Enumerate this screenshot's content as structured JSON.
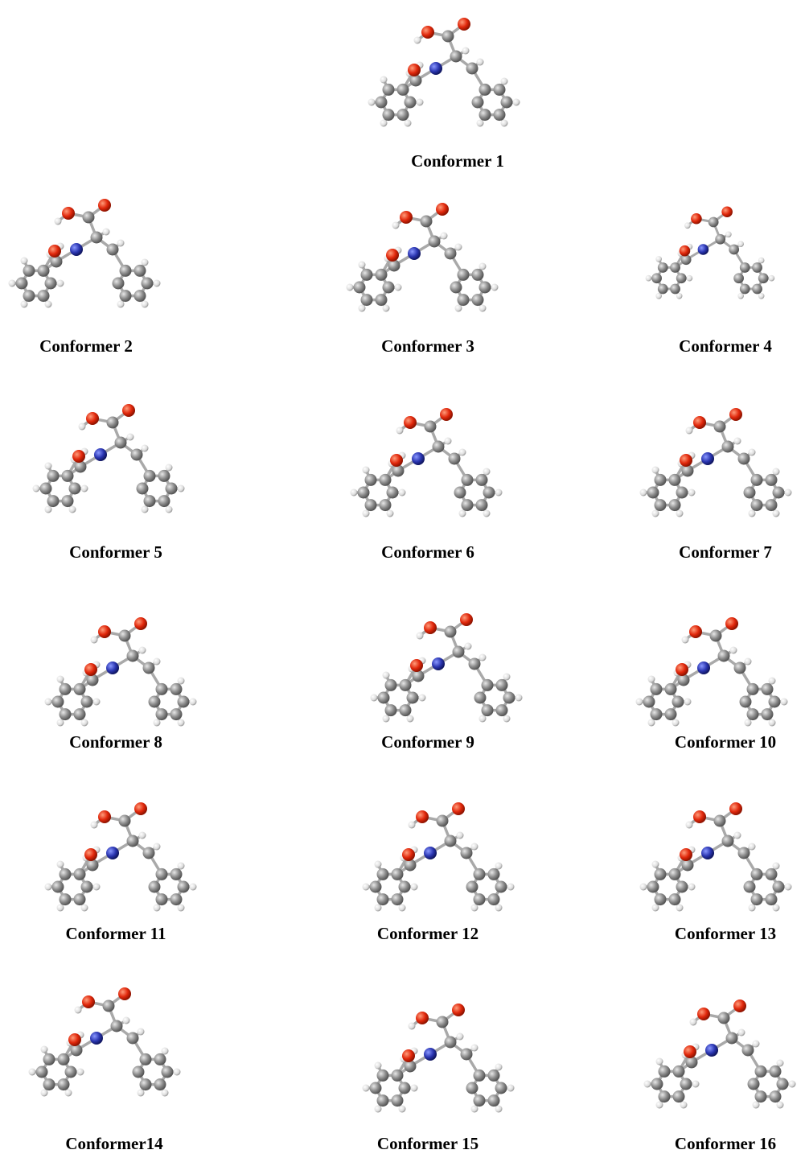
{
  "conformers": [
    "Conformer 1",
    "Conformer 2",
    "Conformer 3",
    "Conformer 4",
    "Conformer 5",
    "Conformer 6",
    "Conformer 7",
    "Conformer 8",
    "Conformer 9",
    "Conformer 10",
    "Conformer 11",
    "Conformer 12",
    "Conformer 13",
    "Conformer14",
    "Conformer 15",
    "Conformer 16"
  ]
}
